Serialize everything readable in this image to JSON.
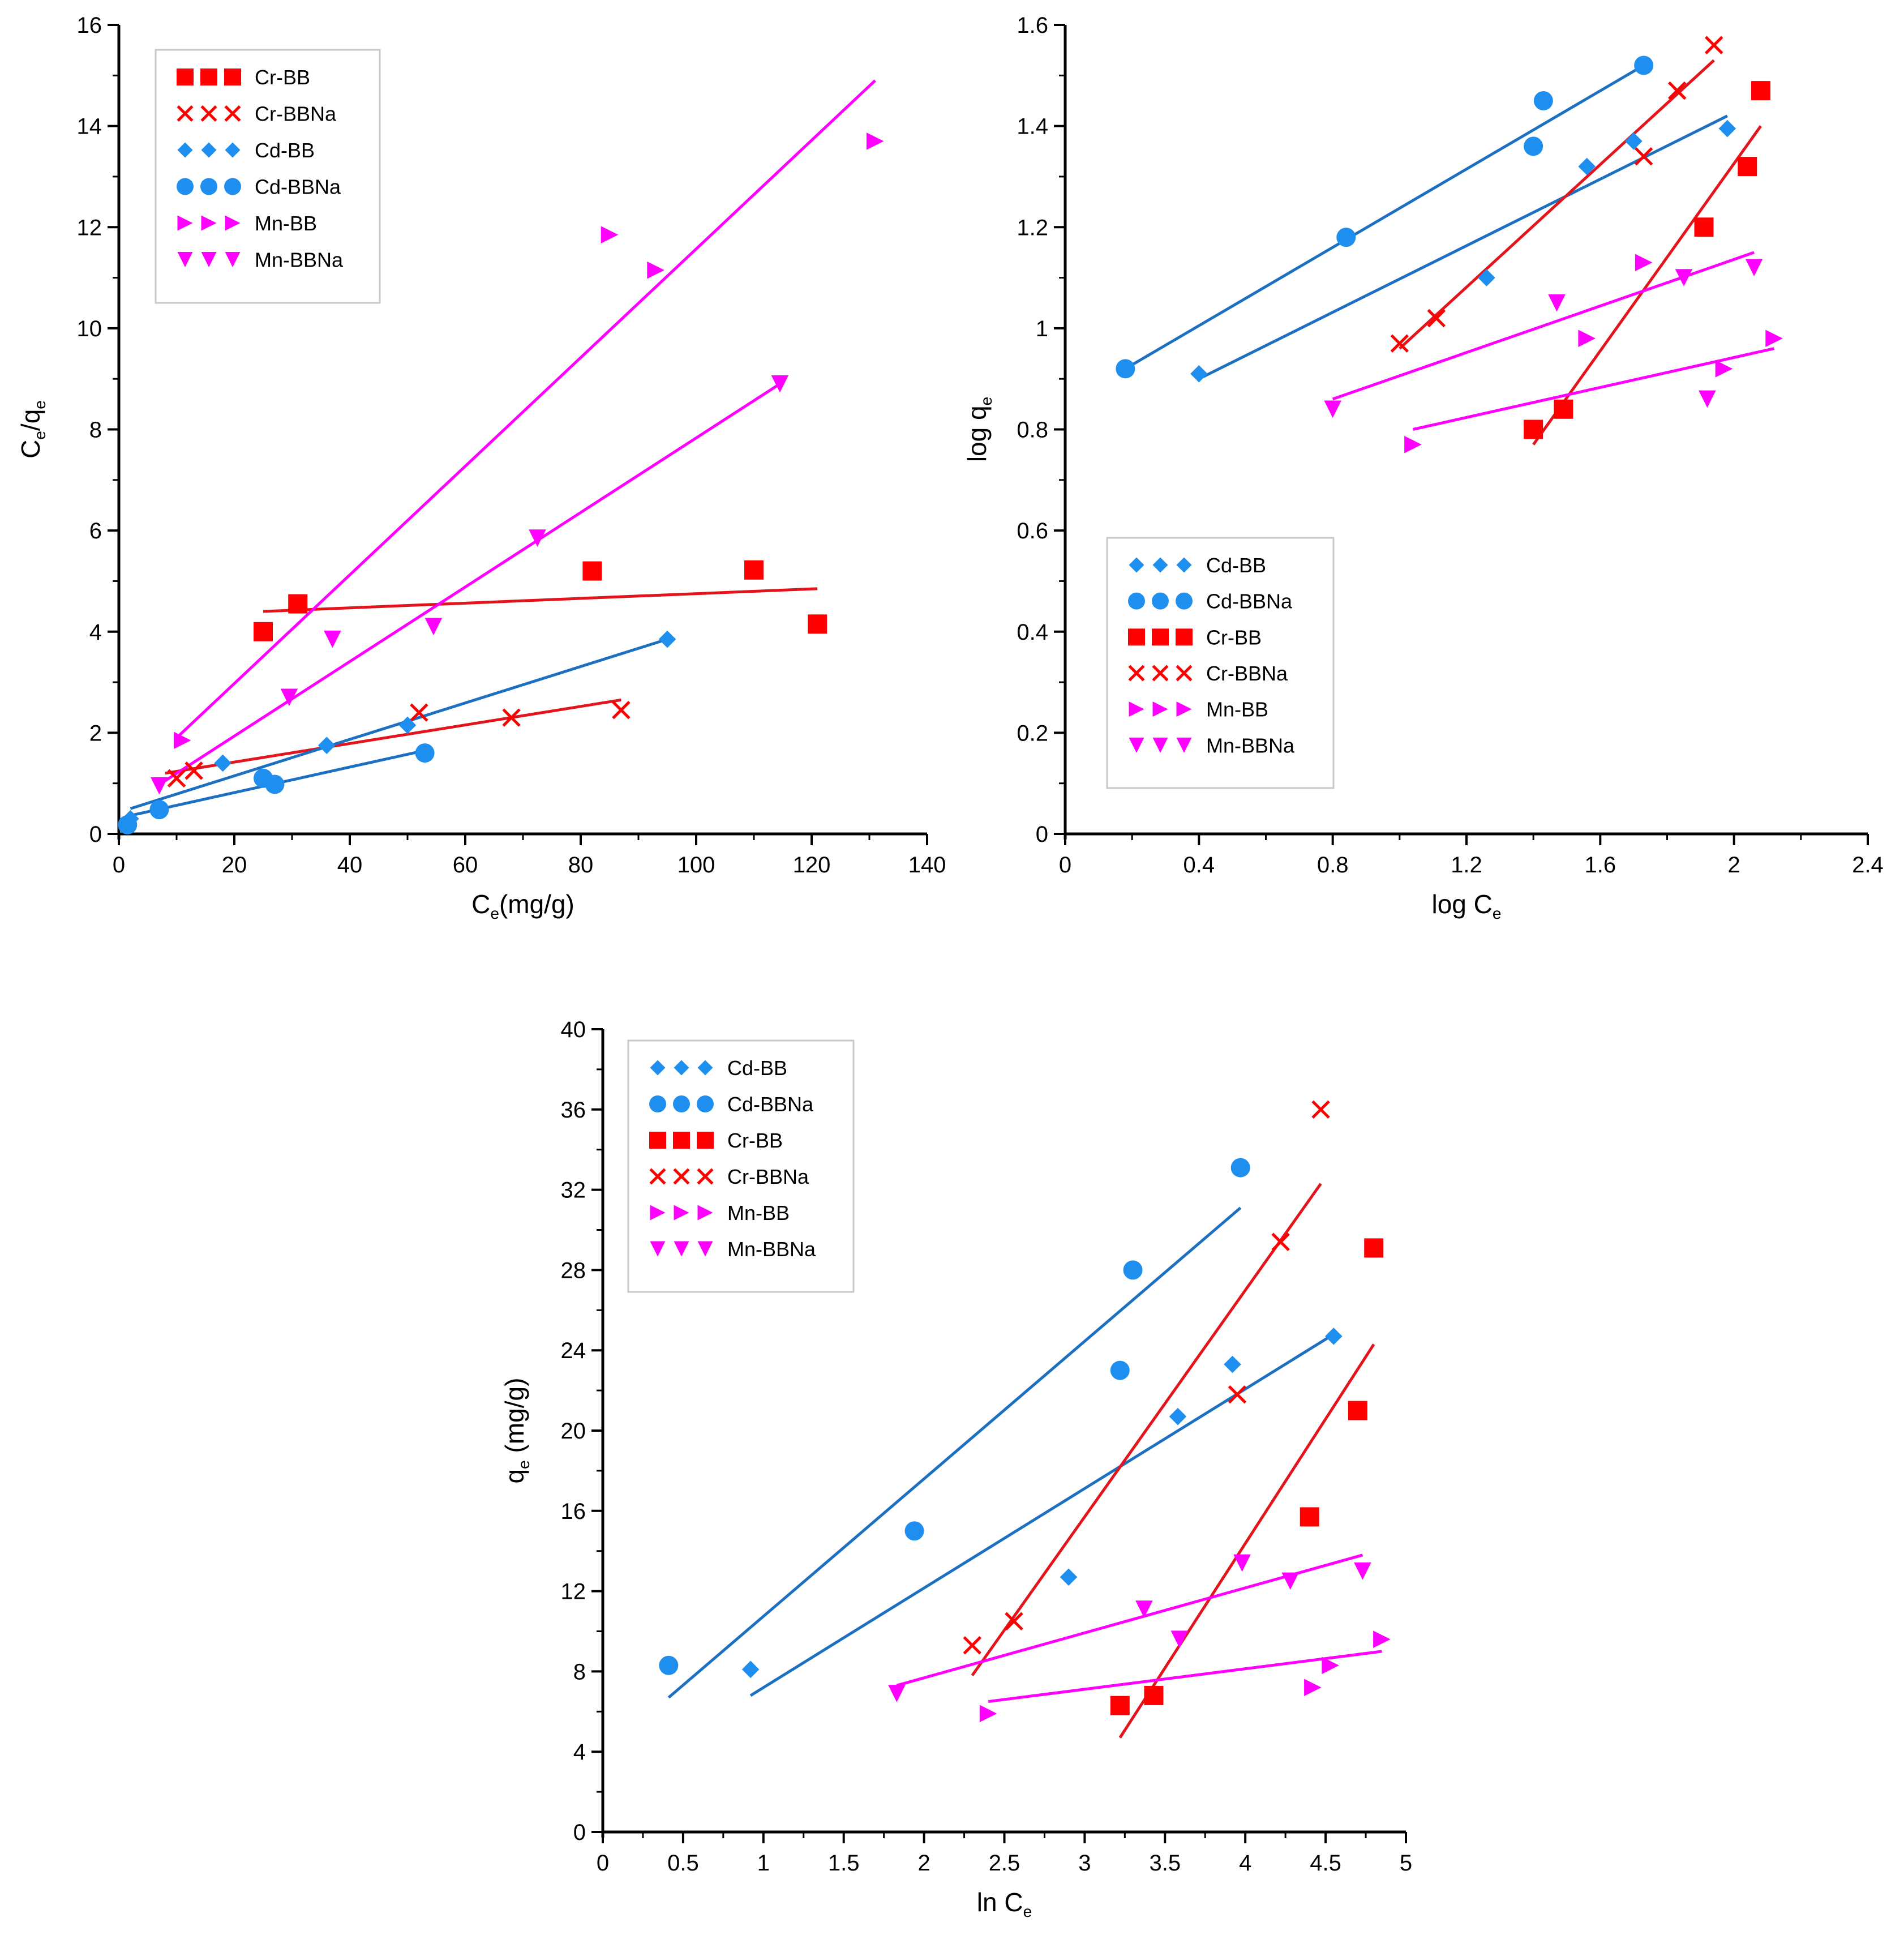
{
  "colors": {
    "cr": "#FF0000",
    "cd": "#1F8FEF",
    "mn": "#FF00FF",
    "cd_line": "#1C6FC1",
    "cr_line": "#E3141C"
  },
  "chart_data": [
    {
      "type": "scatter",
      "xlabel": "Ce(mg/g)",
      "ylabel": "Ce/qe",
      "xlim": [
        0,
        140
      ],
      "ylim": [
        0,
        16
      ],
      "xticks": [
        "0",
        "20",
        "40",
        "60",
        "80",
        "100",
        "120",
        "140"
      ],
      "yticks": [
        "0",
        "2",
        "4",
        "6",
        "8",
        "10",
        "12",
        "14",
        "16"
      ],
      "legend_position": "top-left",
      "series": [
        {
          "name": "Cr-BB",
          "marker": "square",
          "color": "#FF0000",
          "x": [
            25,
            31,
            82,
            110,
            121
          ],
          "y": [
            4.0,
            4.55,
            5.2,
            5.22,
            4.15
          ],
          "fit": [
            [
              25,
              4.4
            ],
            [
              121,
              4.85
            ]
          ]
        },
        {
          "name": "Cr-BBNa",
          "marker": "x",
          "color": "#FF0000",
          "x": [
            10,
            13,
            52,
            68,
            87
          ],
          "y": [
            1.1,
            1.25,
            2.4,
            2.3,
            2.45
          ],
          "fit": [
            [
              8,
              1.2
            ],
            [
              87,
              2.65
            ]
          ]
        },
        {
          "name": "Cd-BB",
          "marker": "diamond",
          "color": "#1F8FEF",
          "x": [
            2,
            18,
            36,
            50,
            95
          ],
          "y": [
            0.3,
            1.4,
            1.75,
            2.15,
            3.85
          ],
          "fit": [
            [
              2,
              0.5
            ],
            [
              95,
              3.85
            ]
          ]
        },
        {
          "name": "Cd-BBNa",
          "marker": "circle",
          "color": "#1F8FEF",
          "x": [
            1.5,
            7,
            25,
            27,
            53
          ],
          "y": [
            0.18,
            0.48,
            1.1,
            0.98,
            1.6
          ],
          "fit": [
            [
              1.5,
              0.35
            ],
            [
              53,
              1.65
            ]
          ]
        },
        {
          "name": "Mn-BB",
          "marker": "triangle-right",
          "color": "#FF00FF",
          "x": [
            11,
            85,
            93,
            131
          ],
          "y": [
            1.85,
            11.85,
            11.15,
            13.7
          ],
          "fit": [
            [
              10,
              1.9
            ],
            [
              131,
              14.9
            ]
          ]
        },
        {
          "name": "Mn-BBNa",
          "marker": "triangle-down",
          "color": "#FF00FF",
          "x": [
            7,
            29.5,
            37,
            54.5,
            72.5,
            114.5
          ],
          "y": [
            0.95,
            2.7,
            3.85,
            4.1,
            5.85,
            8.9
          ],
          "fit": [
            [
              8,
              1.05
            ],
            [
              114.5,
              8.9
            ]
          ]
        }
      ]
    },
    {
      "type": "scatter",
      "xlabel": "log Ce",
      "ylabel": "log qe",
      "xlim": [
        0,
        2.4
      ],
      "ylim": [
        0,
        1.6
      ],
      "xticks": [
        "0",
        "0.4",
        "0.8",
        "1.2",
        "1.6",
        "2",
        "2.4"
      ],
      "yticks": [
        "0",
        "0.2",
        "0.4",
        "0.6",
        "0.8",
        "1",
        "1.2",
        "1.4",
        "1.6"
      ],
      "legend_position": "bottom-left",
      "series": [
        {
          "name": "Cd-BB",
          "marker": "diamond",
          "color": "#1F8FEF",
          "x": [
            0.4,
            1.26,
            1.56,
            1.7,
            1.98
          ],
          "y": [
            0.91,
            1.1,
            1.32,
            1.37,
            1.395
          ],
          "fit": [
            [
              0.4,
              0.9
            ],
            [
              1.98,
              1.42
            ]
          ]
        },
        {
          "name": "Cd-BBNa",
          "marker": "circle",
          "color": "#1F8FEF",
          "x": [
            0.18,
            0.84,
            1.4,
            1.43,
            1.73
          ],
          "y": [
            0.92,
            1.18,
            1.36,
            1.45,
            1.52
          ],
          "fit": [
            [
              0.18,
              0.92
            ],
            [
              1.73,
              1.52
            ]
          ]
        },
        {
          "name": "Cr-BB",
          "marker": "square",
          "color": "#FF0000",
          "x": [
            1.4,
            1.49,
            1.91,
            2.04,
            2.08
          ],
          "y": [
            0.8,
            0.84,
            1.2,
            1.32,
            1.47
          ],
          "fit": [
            [
              1.4,
              0.77
            ],
            [
              2.08,
              1.4
            ]
          ]
        },
        {
          "name": "Cr-BBNa",
          "marker": "x",
          "color": "#FF0000",
          "x": [
            1.0,
            1.11,
            1.73,
            1.83,
            1.94
          ],
          "y": [
            0.97,
            1.02,
            1.34,
            1.47,
            1.56
          ],
          "fit": [
            [
              1.0,
              0.96
            ],
            [
              1.94,
              1.53
            ]
          ]
        },
        {
          "name": "Mn-BB",
          "marker": "triangle-right",
          "color": "#FF00FF",
          "x": [
            1.04,
            1.56,
            1.73,
            1.97,
            2.12
          ],
          "y": [
            0.77,
            0.98,
            1.13,
            0.92,
            0.98
          ],
          "fit": [
            [
              1.04,
              0.8
            ],
            [
              2.12,
              0.96
            ]
          ]
        },
        {
          "name": "Mn-BBNa",
          "marker": "triangle-down",
          "color": "#FF00FF",
          "x": [
            0.8,
            1.47,
            1.85,
            1.92,
            2.06
          ],
          "y": [
            0.84,
            1.05,
            1.1,
            0.86,
            1.12
          ],
          "fit": [
            [
              0.8,
              0.86
            ],
            [
              2.06,
              1.15
            ]
          ]
        }
      ]
    },
    {
      "type": "scatter",
      "xlabel": "ln Ce",
      "ylabel": "qe (mg/g)",
      "xlim": [
        0,
        5
      ],
      "ylim": [
        0,
        40
      ],
      "xticks": [
        "0",
        "0.5",
        "1",
        "1.5",
        "2",
        "2.5",
        "3",
        "3.5",
        "4",
        "4.5",
        "5"
      ],
      "yticks": [
        "0",
        "4",
        "8",
        "12",
        "16",
        "20",
        "24",
        "28",
        "32",
        "36",
        "40"
      ],
      "legend_position": "top-left",
      "series": [
        {
          "name": "Cd-BB",
          "marker": "diamond",
          "color": "#1F8FEF",
          "x": [
            0.92,
            2.9,
            3.58,
            3.92,
            4.55
          ],
          "y": [
            8.1,
            12.7,
            20.7,
            23.3,
            24.7
          ],
          "fit": [
            [
              0.92,
              6.8
            ],
            [
              4.55,
              24.8
            ]
          ]
        },
        {
          "name": "Cd-BBNa",
          "marker": "circle",
          "color": "#1F8FEF",
          "x": [
            0.41,
            1.94,
            3.22,
            3.3,
            3.97
          ],
          "y": [
            8.3,
            15.0,
            23.0,
            28.0,
            33.1
          ],
          "fit": [
            [
              0.41,
              6.7
            ],
            [
              3.97,
              31.1
            ]
          ]
        },
        {
          "name": "Cr-BB",
          "marker": "square",
          "color": "#FF0000",
          "x": [
            3.22,
            3.43,
            4.4,
            4.7,
            4.8
          ],
          "y": [
            6.3,
            6.8,
            15.7,
            21.0,
            29.1
          ],
          "fit": [
            [
              3.22,
              4.7
            ],
            [
              4.8,
              24.3
            ]
          ]
        },
        {
          "name": "Cr-BBNa",
          "marker": "x",
          "color": "#FF0000",
          "x": [
            2.3,
            2.56,
            3.95,
            4.22,
            4.47
          ],
          "y": [
            9.3,
            10.5,
            21.8,
            29.4,
            36.0
          ],
          "fit": [
            [
              2.3,
              7.8
            ],
            [
              4.47,
              32.3
            ]
          ]
        },
        {
          "name": "Mn-BB",
          "marker": "triangle-right",
          "color": "#FF00FF",
          "x": [
            2.4,
            4.42,
            4.53,
            4.85
          ],
          "y": [
            5.9,
            7.2,
            8.3,
            9.6
          ],
          "fit": [
            [
              2.4,
              6.5
            ],
            [
              4.85,
              9.0
            ]
          ]
        },
        {
          "name": "Mn-BBNa",
          "marker": "triangle-down",
          "color": "#FF00FF",
          "x": [
            1.83,
            3.37,
            3.59,
            3.98,
            4.28,
            4.73
          ],
          "y": [
            6.9,
            11.1,
            9.6,
            13.4,
            12.5,
            13.0
          ],
          "fit": [
            [
              1.83,
              7.3
            ],
            [
              4.73,
              13.8
            ]
          ]
        }
      ]
    }
  ]
}
